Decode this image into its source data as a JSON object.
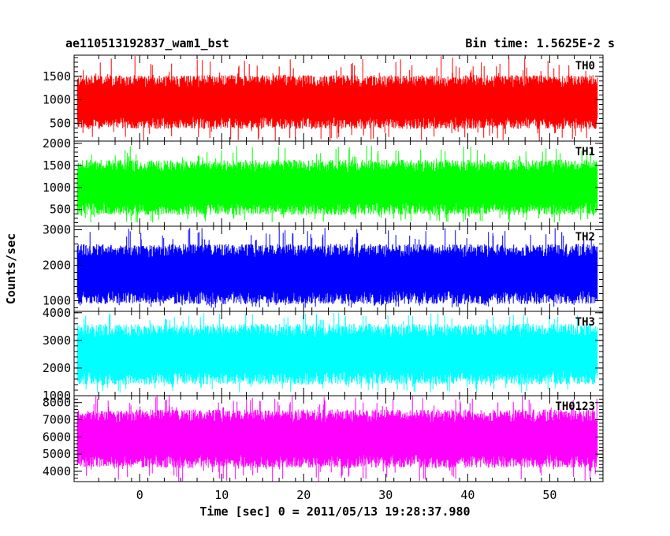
{
  "header": {
    "title": "ae110513192837_wam1_bst",
    "bin_time": "Bin time: 1.5625E-2 s"
  },
  "chart_data": {
    "type": "line",
    "title": "ae110513192837_wam1_bst",
    "xlabel": "Time [sec] 0 = 2011/05/13 19:28:37.980",
    "ylabel": "Counts/sec",
    "xlim": [
      -8,
      56.5
    ],
    "x_ticks": [
      0,
      10,
      20,
      30,
      40,
      50
    ],
    "x_tick_labels": [
      "0",
      "10",
      "20",
      "30",
      "40",
      "50"
    ],
    "bin_time_s": 0.015625,
    "panels": [
      {
        "name": "TH0",
        "color": "#ff0000",
        "ylim": [
          120,
          1950
        ],
        "y_ticks": [
          500,
          1000,
          1500
        ],
        "y_tick_labels": [
          "500",
          "1000",
          "1500"
        ],
        "mean": 950,
        "low": 350,
        "high": 1500,
        "max_spike": 1950,
        "min_spike": 120
      },
      {
        "name": "TH1",
        "color": "#00ff00",
        "ylim": [
          120,
          2050
        ],
        "y_ticks": [
          500,
          1000,
          1500,
          2000
        ],
        "y_tick_labels": [
          "500",
          "1000",
          "1500",
          "2000"
        ],
        "mean": 1000,
        "low": 400,
        "high": 1650,
        "max_spike": 1950,
        "min_spike": 200
      },
      {
        "name": "TH2",
        "color": "#0000ff",
        "ylim": [
          700,
          3100
        ],
        "y_ticks": [
          1000,
          2000,
          3000
        ],
        "y_tick_labels": [
          "1000",
          "2000",
          "3000"
        ],
        "mean": 1750,
        "low": 1000,
        "high": 2700,
        "max_spike": 3050,
        "min_spike": 800
      },
      {
        "name": "TH3",
        "color": "#00ffff",
        "ylim": [
          1000,
          4050
        ],
        "y_ticks": [
          1000,
          2000,
          3000,
          4000
        ],
        "y_tick_labels": [
          "1000",
          "2000",
          "3000",
          "4000"
        ],
        "mean": 2500,
        "low": 1500,
        "high": 3700,
        "max_spike": 4000,
        "min_spike": 1100
      },
      {
        "name": "TH0123",
        "color": "#ff00ff",
        "ylim": [
          3400,
          8400
        ],
        "y_ticks": [
          4000,
          5000,
          6000,
          7000,
          8000
        ],
        "y_tick_labels": [
          "4000",
          "5000",
          "6000",
          "7000",
          "8000"
        ],
        "mean": 5900,
        "low": 4300,
        "high": 7700,
        "max_spike": 8400,
        "min_spike": 3400
      }
    ]
  }
}
